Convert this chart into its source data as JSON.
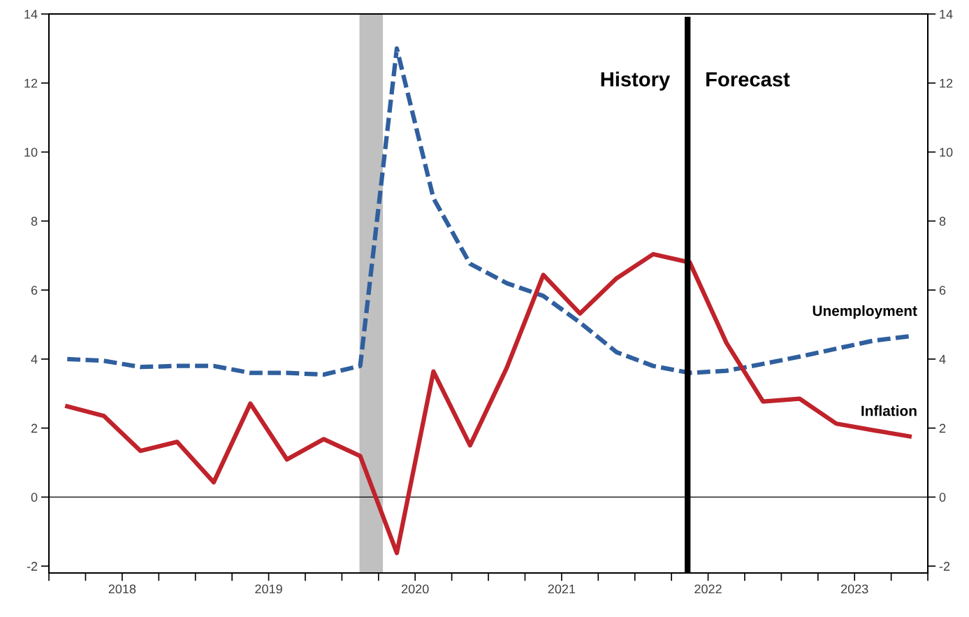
{
  "chart_data": {
    "type": "line",
    "x": [
      2018.125,
      2018.375,
      2018.625,
      2018.875,
      2019.125,
      2019.375,
      2019.625,
      2019.875,
      2020.125,
      2020.375,
      2020.625,
      2020.875,
      2021.125,
      2021.375,
      2021.625,
      2021.875,
      2022.125,
      2022.375,
      2022.625,
      2022.875,
      2023.125,
      2023.375,
      2023.625,
      2023.875
    ],
    "series": [
      {
        "name": "Unemployment",
        "color": "#2f5f9e",
        "line_style": "dashed",
        "values": [
          4.0,
          3.95,
          3.77,
          3.8,
          3.8,
          3.6,
          3.6,
          3.55,
          3.8,
          13.0,
          8.66,
          6.76,
          6.2,
          5.83,
          5.06,
          4.2,
          3.8,
          3.6,
          3.66,
          3.86,
          4.07,
          4.3,
          4.53,
          4.66
        ]
      },
      {
        "name": "Inflation",
        "color": "#c0232b",
        "line_style": "solid",
        "values": [
          2.63,
          2.35,
          1.34,
          1.6,
          0.43,
          2.71,
          1.09,
          1.68,
          1.19,
          -1.62,
          3.64,
          1.5,
          3.74,
          6.44,
          5.32,
          6.34,
          7.04,
          6.8,
          4.47,
          2.77,
          2.85,
          2.13,
          1.94,
          1.76
        ]
      }
    ],
    "xlim": [
      2018,
      2024
    ],
    "xticks": [
      {
        "value": 2018,
        "label": null
      },
      {
        "value": 2018.25,
        "label": null
      },
      {
        "value": 2018.5,
        "label": "2018"
      },
      {
        "value": 2018.75,
        "label": null
      },
      {
        "value": 2019,
        "label": null
      },
      {
        "value": 2019.25,
        "label": null
      },
      {
        "value": 2019.5,
        "label": "2019"
      },
      {
        "value": 2019.75,
        "label": null
      },
      {
        "value": 2020,
        "label": null
      },
      {
        "value": 2020.25,
        "label": null
      },
      {
        "value": 2020.5,
        "label": "2020"
      },
      {
        "value": 2020.75,
        "label": null
      },
      {
        "value": 2021,
        "label": null
      },
      {
        "value": 2021.25,
        "label": null
      },
      {
        "value": 2021.5,
        "label": "2021"
      },
      {
        "value": 2021.75,
        "label": null
      },
      {
        "value": 2022,
        "label": null
      },
      {
        "value": 2022.25,
        "label": null
      },
      {
        "value": 2022.5,
        "label": "2022"
      },
      {
        "value": 2022.75,
        "label": null
      },
      {
        "value": 2023,
        "label": null
      },
      {
        "value": 2023.25,
        "label": null
      },
      {
        "value": 2023.5,
        "label": "2023"
      },
      {
        "value": 2023.75,
        "label": null
      },
      {
        "value": 2024,
        "label": null
      }
    ],
    "ylim": [
      -2.2,
      14
    ],
    "yticks": [
      -2,
      0,
      2,
      4,
      6,
      8,
      10,
      12,
      14
    ],
    "y2lim": [
      -2.2,
      14
    ],
    "y2ticks": [
      -2,
      0,
      2,
      4,
      6,
      8,
      10,
      12,
      14
    ],
    "ref_lines": [
      {
        "axis": "y",
        "value": 0,
        "color": "#000000"
      },
      {
        "axis": "x",
        "value": 2022.36,
        "color": "#000000"
      }
    ],
    "bands": [
      {
        "axis": "x",
        "from": 2020.12,
        "to": 2020.28,
        "color": "#c0c0c0"
      }
    ],
    "annotations": [
      "History",
      "Forecast"
    ],
    "grid": false,
    "legend": false,
    "marker": "none"
  }
}
